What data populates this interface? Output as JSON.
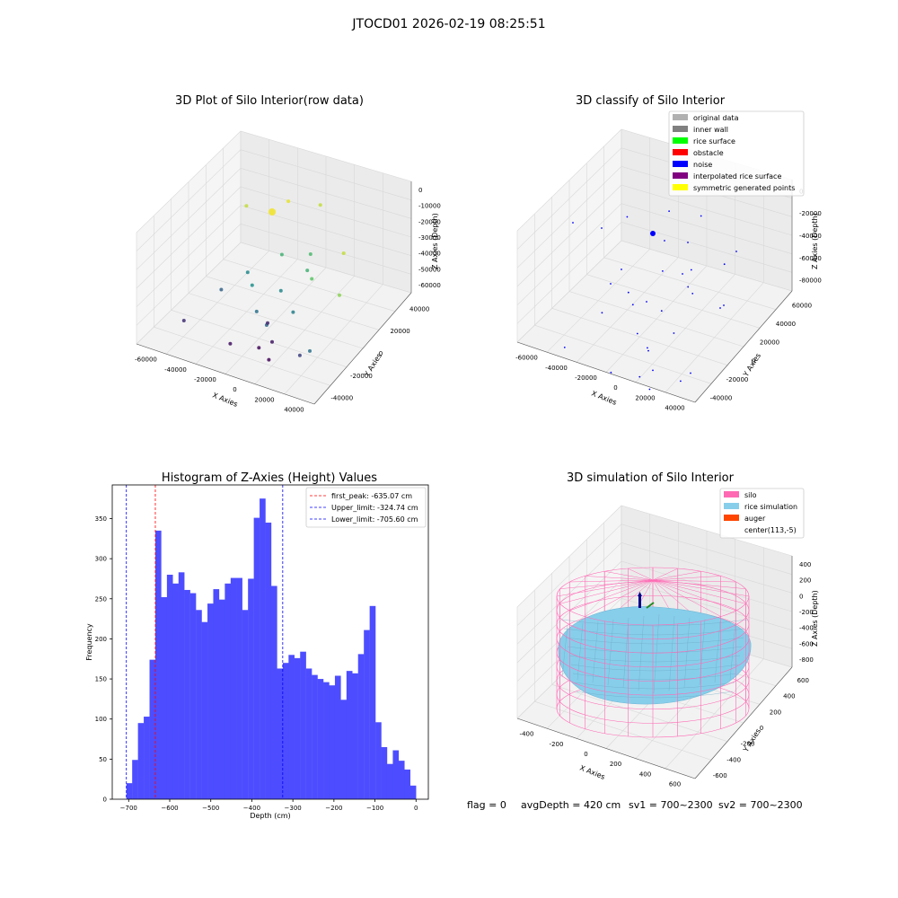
{
  "suptitle": "JTOCD01 2026-02-19 08:25:51",
  "footer": {
    "flag": "flag = 0",
    "avg_depth": "avgDepth = 420 cm",
    "sv1": "sv1 = 700~2300",
    "sv2": "sv2 = 700~2300"
  },
  "colors": {
    "hist_bar": "#4d4dff",
    "first_peak": "#ff0000",
    "limit": "#0000ff",
    "silo": "#ff69b4",
    "rice": "#87ceeb",
    "auger": "#ff4500"
  },
  "chart_data": [
    {
      "type": "scatter",
      "projection": "3d",
      "title": "3D Plot of Silo Interior(row data)",
      "xlabel": "X Axies",
      "ylabel": "Y Axies",
      "zlabel": "Z Axies (Depth)",
      "x_ticks": [
        "-60000",
        "-40000",
        "-20000",
        "0",
        "20000",
        "40000"
      ],
      "y_ticks": [
        "-40000",
        "-20000",
        "0",
        "20000",
        "40000"
      ],
      "z_ticks": [
        "0",
        "-10000",
        "-20000",
        "-30000",
        "-40000",
        "-50000",
        "-60000"
      ],
      "colormap": "viridis by depth",
      "points": [
        {
          "x": -5000,
          "y": 38000,
          "z": -15000
        },
        {
          "x": -40000,
          "y": 20000,
          "z": -15000
        },
        {
          "x": -20000,
          "y": 30000,
          "z": -12000
        },
        {
          "x": 30000,
          "y": 10000,
          "z": -15000
        },
        {
          "x": 45000,
          "y": -15000,
          "z": -20000
        },
        {
          "x": 20000,
          "y": -5000,
          "z": -25000
        },
        {
          "x": 5000,
          "y": 15000,
          "z": -28000
        },
        {
          "x": -10000,
          "y": 10000,
          "z": -30000
        },
        {
          "x": 10000,
          "y": 5000,
          "z": -30000
        },
        {
          "x": -15000,
          "y": -10000,
          "z": -38000
        },
        {
          "x": 0,
          "y": -5000,
          "z": -40000
        },
        {
          "x": 15000,
          "y": -15000,
          "z": -42000
        },
        {
          "x": -25000,
          "y": 0,
          "z": -40000
        },
        {
          "x": -5000,
          "y": -20000,
          "z": -45000
        },
        {
          "x": 5000,
          "y": -25000,
          "z": -47000
        },
        {
          "x": 40000,
          "y": -35000,
          "z": -45000
        },
        {
          "x": -35000,
          "y": -10000,
          "z": -48000
        },
        {
          "x": 30000,
          "y": -30000,
          "z": -55000
        },
        {
          "x": -45000,
          "y": -30000,
          "z": -58000
        },
        {
          "x": -5000,
          "y": -10000,
          "z": -60000
        },
        {
          "x": 5000,
          "y": -20000,
          "z": -62000
        },
        {
          "x": -15000,
          "y": -30000,
          "z": -63000
        },
        {
          "x": 0,
          "y": -25000,
          "z": -64000
        },
        {
          "x": 10000,
          "y": -30000,
          "z": -65000
        }
      ]
    },
    {
      "type": "scatter",
      "projection": "3d",
      "title": "3D classify of Silo Interior",
      "xlabel": "X Axies",
      "ylabel": "Y Axies",
      "zlabel": "Z Axies (Depth)",
      "x_ticks": [
        "-60000",
        "-40000",
        "-20000",
        "0",
        "20000",
        "40000"
      ],
      "y_ticks": [
        "-40000",
        "-20000",
        "0",
        "20000",
        "40000",
        "60000"
      ],
      "z_ticks": [
        "0",
        "-20000",
        "-40000",
        "-60000",
        "-80000"
      ],
      "legend": [
        {
          "label": "original data",
          "color": "#b0b0b0"
        },
        {
          "label": "inner wall",
          "color": "#808080"
        },
        {
          "label": "rice surface",
          "color": "#00ff00"
        },
        {
          "label": "obstacle",
          "color": "#ff0000"
        },
        {
          "label": "noise",
          "color": "#0000ff"
        },
        {
          "label": "interpolated rice surface",
          "color": "#800080"
        },
        {
          "label": "symmetric generated points",
          "color": "#ffff00"
        }
      ],
      "legend_position": "top-right"
    },
    {
      "type": "bar",
      "title": "Histogram of Z-Axies (Height) Values",
      "xlabel": "Depth (cm)",
      "ylabel": "Frequency",
      "xlim": [
        -740,
        30
      ],
      "ylim": [
        0,
        392
      ],
      "x_ticks": [
        -700,
        -600,
        -500,
        -400,
        -300,
        -200,
        -100,
        0
      ],
      "y_ticks": [
        0,
        50,
        100,
        150,
        200,
        250,
        300,
        350
      ],
      "bin_start": -705.6,
      "bin_width": 14.11,
      "values": [
        20,
        49,
        95,
        103,
        174,
        335,
        252,
        280,
        269,
        283,
        261,
        257,
        236,
        221,
        244,
        262,
        249,
        269,
        276,
        276,
        236,
        275,
        351,
        375,
        345,
        266,
        163,
        170,
        180,
        176,
        184,
        163,
        155,
        150,
        146,
        142,
        154,
        124,
        160,
        157,
        181,
        211,
        241,
        96,
        65,
        44,
        61,
        48,
        37,
        17
      ],
      "lines": [
        {
          "label": "first_peak: -635.07 cm",
          "x": -635.07,
          "color": "#ff0000"
        },
        {
          "label": "Upper_limit: -324.74 cm",
          "x": -324.74,
          "color": "#0000ff"
        },
        {
          "label": "Lower_limit: -705.60 cm",
          "x": -705.6,
          "color": "#0000ff"
        }
      ],
      "legend_position": "top-right"
    },
    {
      "type": "surface",
      "projection": "3d",
      "title": "3D simulation of Silo Interior",
      "xlabel": "X Axies",
      "ylabel": "Y Axies",
      "zlabel": "Z Axies (Depth)",
      "x_ticks": [
        "-400",
        "-200",
        "0",
        "200",
        "400",
        "600"
      ],
      "y_ticks": [
        "-600",
        "-400",
        "-200",
        "0",
        "200",
        "400",
        "600"
      ],
      "z_ticks": [
        "400",
        "200",
        "0",
        "-200",
        "-400",
        "-600",
        "-800"
      ],
      "legend": [
        {
          "label": "silo",
          "color": "#ff69b4"
        },
        {
          "label": "rice simulation",
          "color": "#87ceeb"
        },
        {
          "label": "auger",
          "color": "#ff4500"
        },
        {
          "label": "center(113,-5)",
          "color": ""
        }
      ],
      "legend_position": "top-right"
    }
  ]
}
